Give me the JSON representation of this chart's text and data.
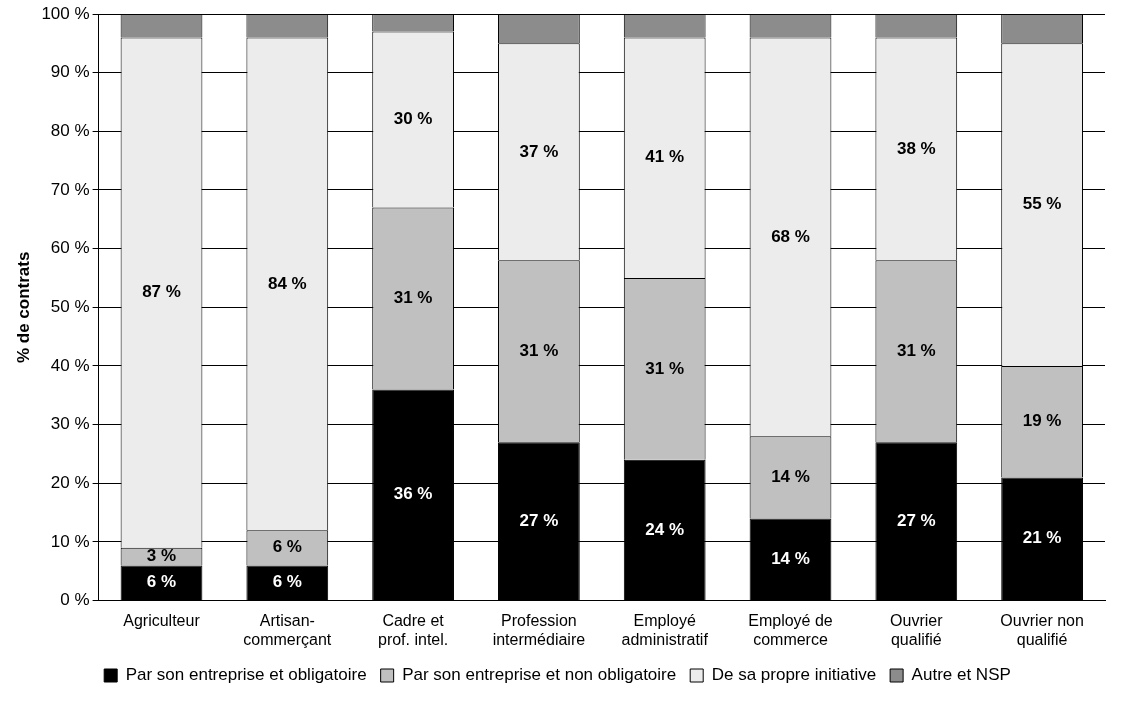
{
  "chart_data": {
    "type": "bar",
    "stacked": true,
    "ylabel": "% de contrats",
    "categories": [
      "Agriculteur",
      "Artisan-commerçant",
      "Cadre et prof. intel.",
      "Profession intermédiaire",
      "Employé administratif",
      "Employé de commerce",
      "Ouvrier qualifié",
      "Ouvrier non qualifié"
    ],
    "series": [
      {
        "name": "Par son entreprise et obligatoire",
        "color": "#000000",
        "values": [
          6,
          6,
          36,
          27,
          24,
          14,
          27,
          21
        ],
        "value_labels": [
          "6 %",
          "6 %",
          "36 %",
          "27 %",
          "24 %",
          "14 %",
          "27 %",
          "21 %"
        ]
      },
      {
        "name": "Par son entreprise et non obligatoire",
        "color": "#c0c0c0",
        "values": [
          3,
          6,
          31,
          31,
          31,
          14,
          31,
          19
        ],
        "value_labels": [
          "3 %",
          "6 %",
          "31 %",
          "31 %",
          "31 %",
          "14 %",
          "31 %",
          "19 %"
        ]
      },
      {
        "name": "De sa propre initiative",
        "color": "#ececec",
        "values": [
          87,
          84,
          30,
          37,
          41,
          68,
          38,
          55
        ],
        "value_labels": [
          "87 %",
          "84 %",
          "30 %",
          "37 %",
          "41 %",
          "68 %",
          "38 %",
          "55 %"
        ]
      },
      {
        "name": "Autre et NSP",
        "color": "#8c8c8c",
        "values": [
          4,
          4,
          3,
          5,
          4,
          4,
          4,
          5
        ]
      }
    ],
    "ylim": [
      0,
      100
    ],
    "yticks": [
      {
        "value": 0,
        "label": "0 %"
      },
      {
        "value": 10,
        "label": "10 %"
      },
      {
        "value": 20,
        "label": "20 %"
      },
      {
        "value": 30,
        "label": "30 %"
      },
      {
        "value": 40,
        "label": "40 %"
      },
      {
        "value": 50,
        "label": "50 %"
      },
      {
        "value": 60,
        "label": "60 %"
      },
      {
        "value": 70,
        "label": "70 %"
      },
      {
        "value": 80,
        "label": "80 %"
      },
      {
        "value": 90,
        "label": "90 %"
      },
      {
        "value": 100,
        "label": "100 %"
      }
    ],
    "grid": "y",
    "legend": "bottom"
  }
}
